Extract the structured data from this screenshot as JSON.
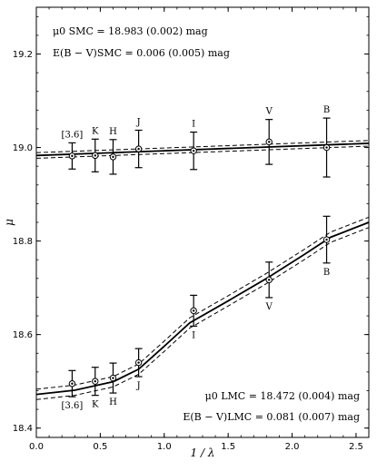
{
  "chart_data": {
    "type": "scatter",
    "xlabel": "1 / λ",
    "ylabel": "μ",
    "xlim": [
      0.0,
      2.6
    ],
    "ylim": [
      18.38,
      19.3
    ],
    "xticks": [
      "0.0",
      "0.5",
      "1.0",
      "1.5",
      "2.0",
      "2.5"
    ],
    "yticks": [
      "18.4",
      "18.6",
      "18.8",
      "19.0",
      "19.2"
    ],
    "grid": false,
    "annotations": {
      "smc_mu": "μ0 SMC = 18.983 (0.002) mag",
      "smc_ebv": "E(B − V)SMC = 0.006 (0.005) mag",
      "lmc_mu": "μ0 LMC = 18.472 (0.004) mag",
      "lmc_ebv": "E(B − V)LMC = 0.081 (0.007) mag"
    },
    "series": [
      {
        "key": "smc",
        "points": [
          {
            "band": "[3.6]",
            "x": 0.28,
            "y": 18.982,
            "err": 0.028
          },
          {
            "band": "K",
            "x": 0.46,
            "y": 18.983,
            "err": 0.035
          },
          {
            "band": "H",
            "x": 0.6,
            "y": 18.98,
            "err": 0.037
          },
          {
            "band": "J",
            "x": 0.8,
            "y": 18.997,
            "err": 0.04
          },
          {
            "band": "I",
            "x": 1.23,
            "y": 18.993,
            "err": 0.04
          },
          {
            "band": "V",
            "x": 1.82,
            "y": 19.012,
            "err": 0.048
          },
          {
            "band": "B",
            "x": 2.27,
            "y": 19.0,
            "err": 0.063
          }
        ],
        "fit_x": [
          0.0,
          2.6
        ],
        "fit_y": [
          18.983,
          19.009
        ],
        "band_width": 0.006
      },
      {
        "key": "lmc",
        "points": [
          {
            "band": "[3.6]",
            "x": 0.28,
            "y": 18.495,
            "err": 0.028
          },
          {
            "band": "K",
            "x": 0.46,
            "y": 18.5,
            "err": 0.03
          },
          {
            "band": "H",
            "x": 0.6,
            "y": 18.507,
            "err": 0.032
          },
          {
            "band": "J",
            "x": 0.8,
            "y": 18.54,
            "err": 0.03
          },
          {
            "band": "I",
            "x": 1.23,
            "y": 18.651,
            "err": 0.033
          },
          {
            "band": "V",
            "x": 1.82,
            "y": 18.717,
            "err": 0.038
          },
          {
            "band": "B",
            "x": 2.27,
            "y": 18.803,
            "err": 0.05
          }
        ],
        "fit_x": [
          0.0,
          0.3,
          0.6,
          0.8,
          1.0,
          1.2,
          1.5,
          1.8,
          2.1,
          2.3,
          2.6
        ],
        "fit_y": [
          18.472,
          18.481,
          18.499,
          18.526,
          18.575,
          18.625,
          18.672,
          18.72,
          18.772,
          18.808,
          18.84
        ],
        "band_width": 0.011
      }
    ]
  }
}
